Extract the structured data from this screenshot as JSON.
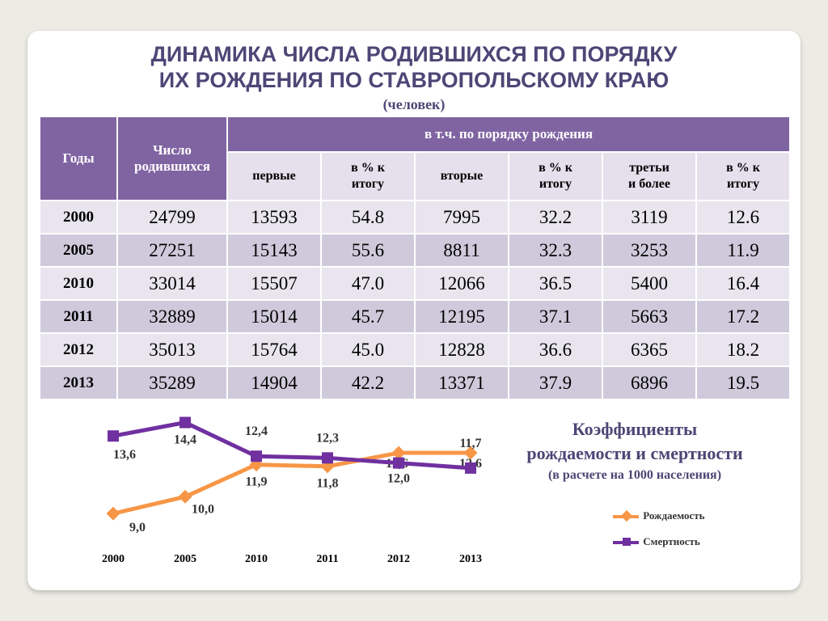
{
  "slide": {
    "title_line1": "ДИНАМИКА ЧИСЛА РОДИВШИХСЯ ПО ПОРЯДКУ",
    "title_line2": "ИХ РОЖДЕНИЯ ПО СТАВРОПОЛЬСКОМУ КРАЮ",
    "subtitle": "(человек)"
  },
  "table": {
    "headers": {
      "years": "Годы",
      "births_l1": "Число",
      "births_l2": "родившихся",
      "group": "в т.ч. по порядку рождения",
      "first": "первые",
      "pct1_l1": "в % к",
      "pct1_l2": "итогу",
      "second": "вторые",
      "pct2_l1": "в % к",
      "pct2_l2": "итогу",
      "third_l1": "третьи",
      "third_l2": "и более",
      "pct3_l1": "в % к",
      "pct3_l2": "итогу"
    },
    "rows": [
      [
        "2000",
        "24799",
        "13593",
        "54.8",
        "7995",
        "32.2",
        "3119",
        "12.6"
      ],
      [
        "2005",
        "27251",
        "15143",
        "55.6",
        "8811",
        "32.3",
        "3253",
        "11.9"
      ],
      [
        "2010",
        "33014",
        "15507",
        "47.0",
        "12066",
        "36.5",
        "5400",
        "16.4"
      ],
      [
        "2011",
        "32889",
        "15014",
        "45.7",
        "12195",
        "37.1",
        "5663",
        "17.2"
      ],
      [
        "2012",
        "35013",
        "15764",
        "45.0",
        "12828",
        "36.6",
        "6365",
        "18.2"
      ],
      [
        "2013",
        "35289",
        "14904",
        "42.2",
        "13371",
        "37.9",
        "6896",
        "19.5"
      ]
    ]
  },
  "chart_heading": {
    "line1": "Коэффициенты",
    "line2": "рождаемости и смертности",
    "line3": "(в расчете на  1000 населения)"
  },
  "colors": {
    "header_purple": "#8064a2",
    "birth_series": "#f79646",
    "death_series": "#7030a0",
    "title_color": "#4d4676"
  },
  "chart_data": {
    "type": "line",
    "categories": [
      "2000",
      "2005",
      "2010",
      "2011",
      "2012",
      "2013"
    ],
    "series": [
      {
        "name": "Рождаемость",
        "values": [
          9.0,
          10.0,
          11.9,
          11.8,
          12.6,
          12.6
        ],
        "labels": [
          "9,0",
          "10,0",
          "11,9",
          "11,8",
          "12,6",
          "12,6"
        ]
      },
      {
        "name": "Смертность",
        "values": [
          13.6,
          14.4,
          12.4,
          12.3,
          12.0,
          11.7
        ],
        "labels": [
          "13,6",
          "14,4",
          "12,4",
          "12,3",
          "12,0",
          "11,7"
        ]
      }
    ],
    "ylim": [
      8,
      15
    ],
    "grid": false,
    "legend": "right"
  }
}
